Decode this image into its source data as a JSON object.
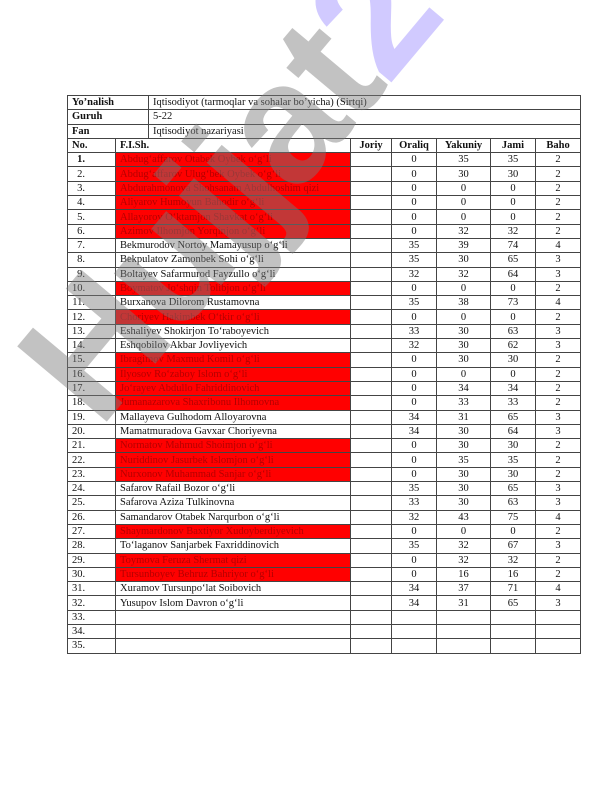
{
  "info": [
    {
      "label": "Yo’nalish",
      "value": "Iqtisodiyot (tarmoqlar va sohalar bo’yicha) (Sirtqi)"
    },
    {
      "label": "Guruh",
      "value": "5-22"
    },
    {
      "label": "Fan",
      "value": "Iqtisodiyot nazariyasi"
    }
  ],
  "columns": [
    "No.",
    "F.I.Sh.",
    "Joriy",
    "Oraliq",
    "Yakuniy",
    "Jami",
    "Baho"
  ],
  "colors": {
    "failed_highlight": "#ff0000",
    "watermark_grey": "#7a7a7a",
    "watermark_purple": "#9a8cff"
  },
  "watermark": {
    "text_grey": "Hujjat",
    "text_purple": "24"
  },
  "rows": [
    {
      "no": "1.",
      "name": "Abdug‘affarov Otabek Oybek o‘g‘li",
      "joriy": "",
      "oraliq": "0",
      "yakuniy": "35",
      "jami": "35",
      "baho": "2",
      "failed": true
    },
    {
      "no": "2.",
      "name": "Abdug‘affarov Ulug‘bek Oybek o‘g‘li",
      "joriy": "",
      "oraliq": "0",
      "yakuniy": "30",
      "jami": "30",
      "baho": "2",
      "failed": true
    },
    {
      "no": "3.",
      "name": "Abdurahmonova Shohsanam Abdulhoshim qizi",
      "joriy": "",
      "oraliq": "0",
      "yakuniy": "0",
      "jami": "0",
      "baho": "2",
      "failed": true
    },
    {
      "no": "4.",
      "name": "Aliyarov Humoyun Bahodir o‘g‘li",
      "joriy": "",
      "oraliq": "0",
      "yakuniy": "0",
      "jami": "0",
      "baho": "2",
      "failed": true
    },
    {
      "no": "5.",
      "name": "Allayorov O‘ktamjon Shavkat o‘g‘li",
      "joriy": "",
      "oraliq": "0",
      "yakuniy": "0",
      "jami": "0",
      "baho": "2",
      "failed": true
    },
    {
      "no": "6.",
      "name": "Azimov Ilhomjon Yorqinjon o‘g‘li",
      "joriy": "",
      "oraliq": "0",
      "yakuniy": "32",
      "jami": "32",
      "baho": "2",
      "failed": true
    },
    {
      "no": "7.",
      "name": "Bekmurodov Nortoy Mamayusup o‘g‘li",
      "joriy": "",
      "oraliq": "35",
      "yakuniy": "39",
      "jami": "74",
      "baho": "4",
      "failed": false
    },
    {
      "no": "8.",
      "name": "Bekpulatov Zamonbek Sohi o‘g‘li",
      "joriy": "",
      "oraliq": "35",
      "yakuniy": "30",
      "jami": "65",
      "baho": "3",
      "failed": false
    },
    {
      "no": "9.",
      "name": "Boltayev Safarmurod Fayzullo o‘g‘li",
      "joriy": "",
      "oraliq": "32",
      "yakuniy": "32",
      "jami": "64",
      "baho": "3",
      "failed": false
    },
    {
      "no": "10.",
      "name": "Boymatov Jo‘shqin Tolibjon o‘g‘li",
      "joriy": "",
      "oraliq": "0",
      "yakuniy": "0",
      "jami": "0",
      "baho": "2",
      "failed": true
    },
    {
      "no": "11.",
      "name": "Burxanova Dilorom Rustamovna",
      "joriy": "",
      "oraliq": "35",
      "yakuniy": "38",
      "jami": "73",
      "baho": "4",
      "failed": false
    },
    {
      "no": "12.",
      "name": "Choriyev Hakimbek O‘tkir o‘g‘li",
      "joriy": "",
      "oraliq": "0",
      "yakuniy": "0",
      "jami": "0",
      "baho": "2",
      "failed": true
    },
    {
      "no": "13.",
      "name": "Eshaliyev Shokirjon To‘raboyevich",
      "joriy": "",
      "oraliq": "33",
      "yakuniy": "30",
      "jami": "63",
      "baho": "3",
      "failed": false
    },
    {
      "no": "14.",
      "name": "Eshqobilov Akbar Jovliyevich",
      "joriy": "",
      "oraliq": "32",
      "yakuniy": "30",
      "jami": "62",
      "baho": "3",
      "failed": false
    },
    {
      "no": "15.",
      "name": "Ibragimov Maxmud Komil o‘g‘li",
      "joriy": "",
      "oraliq": "0",
      "yakuniy": "30",
      "jami": "30",
      "baho": "2",
      "failed": true
    },
    {
      "no": "16.",
      "name": "Ilyosov Ro‘zaboy Islom o‘g‘li",
      "joriy": "",
      "oraliq": "0",
      "yakuniy": "0",
      "jami": "0",
      "baho": "2",
      "failed": true
    },
    {
      "no": "17.",
      "name": "Jo‘rayev Abdullo Fahriddinovich",
      "joriy": "",
      "oraliq": "0",
      "yakuniy": "34",
      "jami": "34",
      "baho": "2",
      "failed": true
    },
    {
      "no": "18.",
      "name": "Jumanazarova Shaxribonu Ilhomovna",
      "joriy": "",
      "oraliq": "0",
      "yakuniy": "33",
      "jami": "33",
      "baho": "2",
      "failed": true
    },
    {
      "no": "19.",
      "name": "Mallayeva Gulhodom Alloyarovna",
      "joriy": "",
      "oraliq": "34",
      "yakuniy": "31",
      "jami": "65",
      "baho": "3",
      "failed": false
    },
    {
      "no": "20.",
      "name": "Mamatmuradova Gavxar Choriyevna",
      "joriy": "",
      "oraliq": "34",
      "yakuniy": "30",
      "jami": "64",
      "baho": "3",
      "failed": false
    },
    {
      "no": "21.",
      "name": "Normatov Mahmud Shoimjon o‘g‘li",
      "joriy": "",
      "oraliq": "0",
      "yakuniy": "30",
      "jami": "30",
      "baho": "2",
      "failed": true
    },
    {
      "no": "22.",
      "name": "Nuriddinov Jasurbek Islomjon o‘g‘li",
      "joriy": "",
      "oraliq": "0",
      "yakuniy": "35",
      "jami": "35",
      "baho": "2",
      "failed": true
    },
    {
      "no": "23.",
      "name": "Nurxonov Muhammad Sanjar o‘g‘li",
      "joriy": "",
      "oraliq": "0",
      "yakuniy": "30",
      "jami": "30",
      "baho": "2",
      "failed": true
    },
    {
      "no": "24.",
      "name": "Safarov Rafail Bozor o‘g‘li",
      "joriy": "",
      "oraliq": "35",
      "yakuniy": "30",
      "jami": "65",
      "baho": "3",
      "failed": false
    },
    {
      "no": "25.",
      "name": "Safarova Aziza Tulkinovna",
      "joriy": "",
      "oraliq": "33",
      "yakuniy": "30",
      "jami": "63",
      "baho": "3",
      "failed": false
    },
    {
      "no": "26.",
      "name": "Samandarov Otabek Narqurbon o‘g‘li",
      "joriy": "",
      "oraliq": "32",
      "yakuniy": "43",
      "jami": "75",
      "baho": "4",
      "failed": false
    },
    {
      "no": "27.",
      "name": "Shaymardonov Baxtiyor Xudoyberdiyevich",
      "joriy": "",
      "oraliq": "0",
      "yakuniy": "0",
      "jami": "0",
      "baho": "2",
      "failed": true
    },
    {
      "no": "28.",
      "name": "To‘laganov Sanjarbek Faxriddinovich",
      "joriy": "",
      "oraliq": "35",
      "yakuniy": "32",
      "jami": "67",
      "baho": "3",
      "failed": false
    },
    {
      "no": "29.",
      "name": "Toymova Feruza Shermat qizi",
      "joriy": "",
      "oraliq": "0",
      "yakuniy": "32",
      "jami": "32",
      "baho": "2",
      "failed": true
    },
    {
      "no": "30.",
      "name": "Tursunboyev Behruz Bahriyor o‘g‘li",
      "joriy": "",
      "oraliq": "0",
      "yakuniy": "16",
      "jami": "16",
      "baho": "2",
      "failed": true
    },
    {
      "no": "31.",
      "name": "Xuramov Tursunpo‘lat Soibovich",
      "joriy": "",
      "oraliq": "34",
      "yakuniy": "37",
      "jami": "71",
      "baho": "4",
      "failed": false
    },
    {
      "no": "32.",
      "name": "Yusupov Islom Davron o‘g‘li",
      "joriy": "",
      "oraliq": "34",
      "yakuniy": "31",
      "jami": "65",
      "baho": "3",
      "failed": false
    },
    {
      "no": "33.",
      "name": "",
      "joriy": "",
      "oraliq": "",
      "yakuniy": "",
      "jami": "",
      "baho": "",
      "failed": false
    },
    {
      "no": "34.",
      "name": "",
      "joriy": "",
      "oraliq": "",
      "yakuniy": "",
      "jami": "",
      "baho": "",
      "failed": false
    },
    {
      "no": "35.",
      "name": "",
      "joriy": "",
      "oraliq": "",
      "yakuniy": "",
      "jami": "",
      "baho": "",
      "failed": false
    }
  ]
}
